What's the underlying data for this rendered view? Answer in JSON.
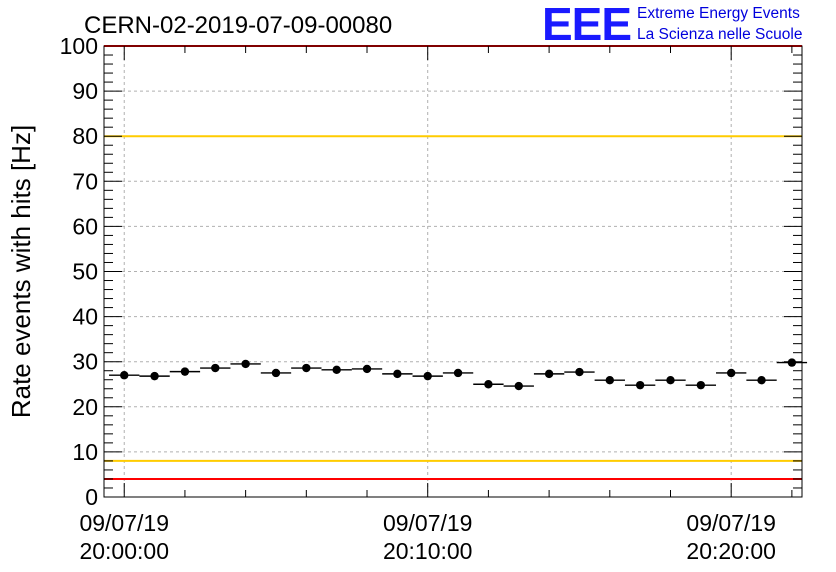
{
  "chart_data": {
    "type": "scatter",
    "title": "CERN-02-2019-07-09-00080",
    "xlabel": "",
    "ylabel": "Rate events with hits [Hz]",
    "ylim": [
      0,
      100
    ],
    "xlim": [
      "09/07/19 19:59:20",
      "09/07/19 20:22:20"
    ],
    "y_ticks": [
      0,
      10,
      20,
      30,
      40,
      50,
      60,
      70,
      80,
      90,
      100
    ],
    "x_ticks": [
      {
        "date": "09/07/19",
        "time": "20:00:00"
      },
      {
        "date": "09/07/19",
        "time": "20:10:00"
      },
      {
        "date": "09/07/19",
        "time": "20:20:00"
      }
    ],
    "grid": true,
    "bin_width_minutes": 1,
    "reference_lines": [
      {
        "y": 100,
        "color": "#ff0000"
      },
      {
        "y": 80,
        "color": "#ffcc00"
      },
      {
        "y": 8,
        "color": "#ffcc00"
      },
      {
        "y": 4,
        "color": "#ff0000"
      }
    ],
    "points": [
      {
        "x": "20:00:00",
        "y": 27.0
      },
      {
        "x": "20:01:00",
        "y": 26.8
      },
      {
        "x": "20:02:00",
        "y": 27.8
      },
      {
        "x": "20:03:00",
        "y": 28.6
      },
      {
        "x": "20:04:00",
        "y": 29.5
      },
      {
        "x": "20:05:00",
        "y": 27.5
      },
      {
        "x": "20:06:00",
        "y": 28.6
      },
      {
        "x": "20:07:00",
        "y": 28.2
      },
      {
        "x": "20:08:00",
        "y": 28.4
      },
      {
        "x": "20:09:00",
        "y": 27.3
      },
      {
        "x": "20:10:00",
        "y": 26.8
      },
      {
        "x": "20:11:00",
        "y": 27.5
      },
      {
        "x": "20:12:00",
        "y": 25.0
      },
      {
        "x": "20:13:00",
        "y": 24.6
      },
      {
        "x": "20:14:00",
        "y": 27.3
      },
      {
        "x": "20:15:00",
        "y": 27.7
      },
      {
        "x": "20:16:00",
        "y": 25.9
      },
      {
        "x": "20:17:00",
        "y": 24.8
      },
      {
        "x": "20:18:00",
        "y": 25.9
      },
      {
        "x": "20:19:00",
        "y": 24.8
      },
      {
        "x": "20:20:00",
        "y": 27.5
      },
      {
        "x": "20:21:00",
        "y": 25.9
      },
      {
        "x": "20:22:00",
        "y": 29.8
      }
    ],
    "marker_color": "#000000"
  },
  "logo": {
    "letters": "EEE",
    "line1": "Extreme Energy Events",
    "line2": "La Scienza nelle Scuole",
    "color": "#1a1aff"
  }
}
